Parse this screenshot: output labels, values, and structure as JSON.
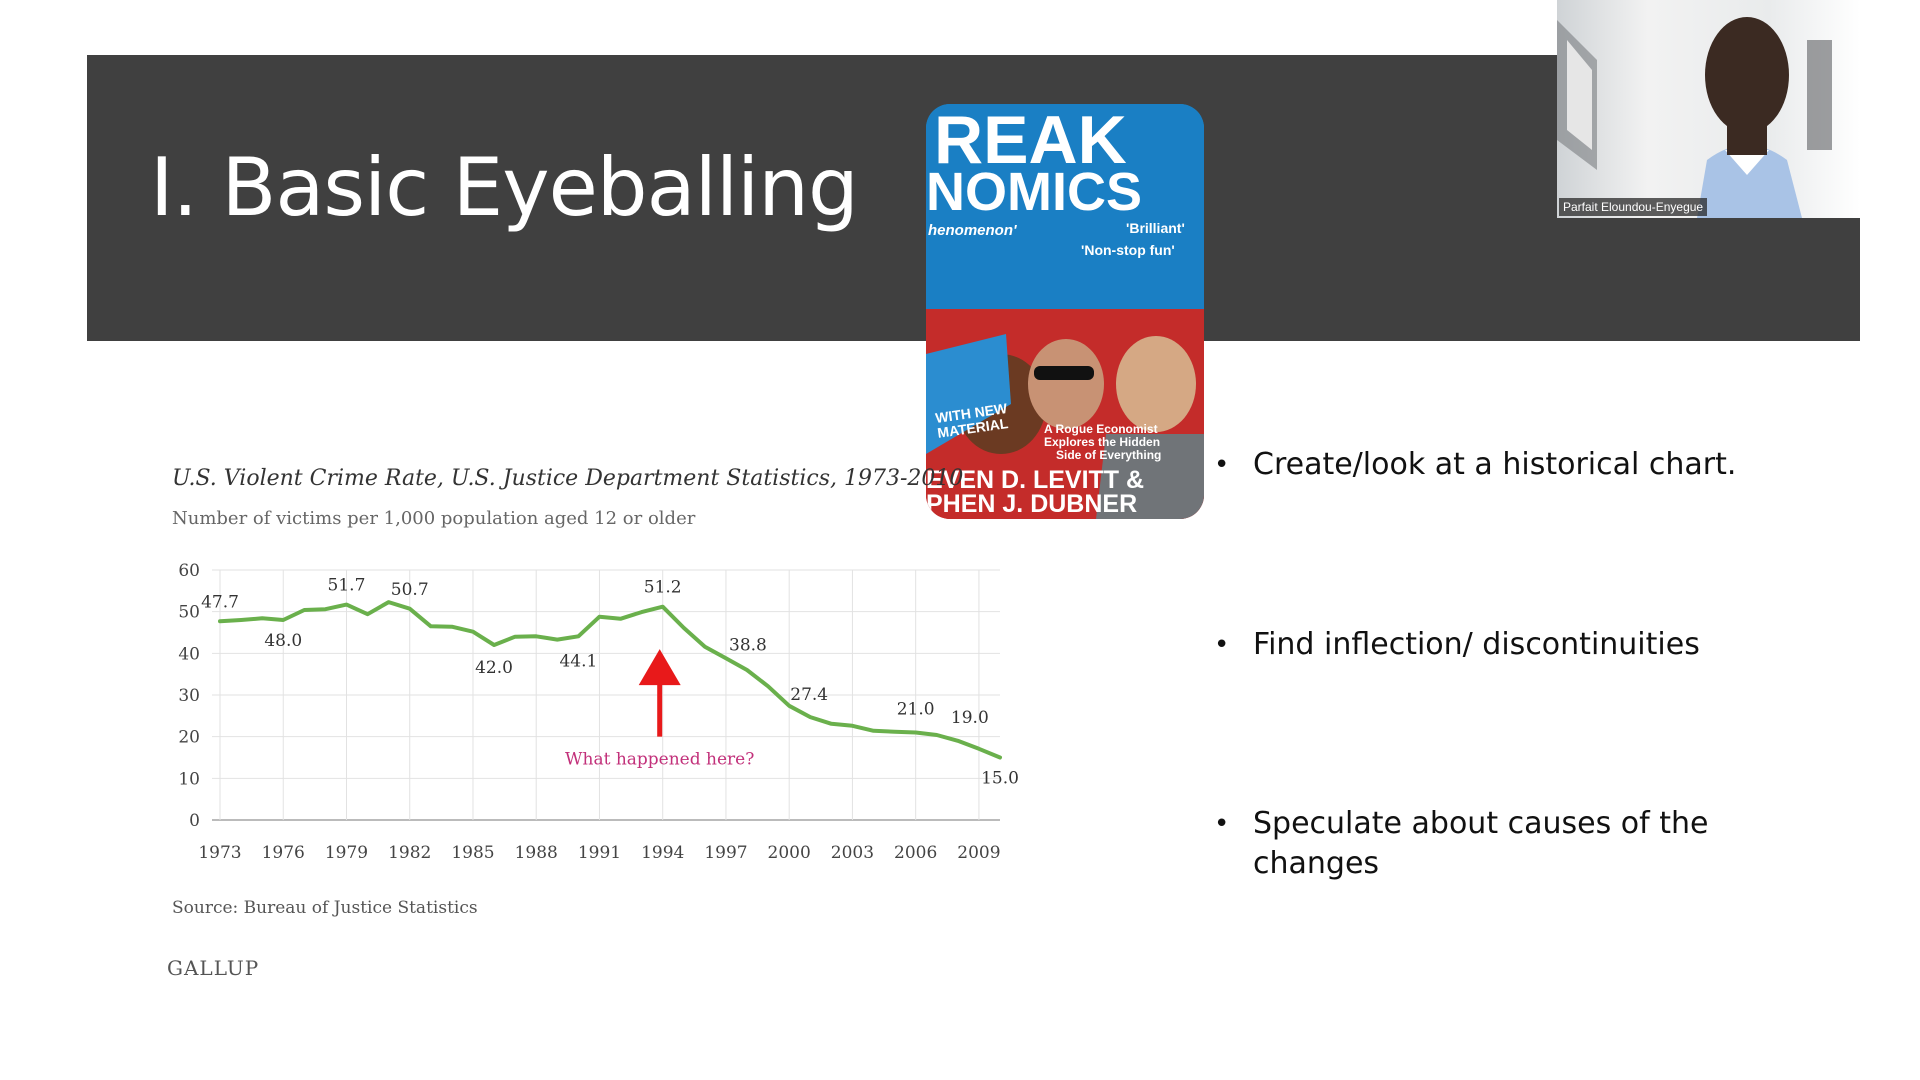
{
  "slide": {
    "title": "I. Basic Eyeballing",
    "bullets": [
      "Create/look at  a historical chart.",
      "Find inflection/ discontinuities",
      "Speculate about causes of the changes"
    ]
  },
  "webcam": {
    "participant_name": "Parfait Eloundou-Enyegue"
  },
  "book_cover": {
    "title_line1": "REAK",
    "title_line2": "NOMICS",
    "tagline_left": "henomenon'",
    "quote1": "'Brilliant'",
    "quote2": "'Non-stop fun'",
    "badge": "WITH NEW MATERIAL",
    "subtitle_line1": "A Rogue Economist",
    "subtitle_line2": "Explores the Hidden",
    "subtitle_line3": "Side of Everything",
    "author_line1": "EVEN D. LEVITT &",
    "author_line2": "PHEN J. DUBNER"
  },
  "chart_data": {
    "type": "line",
    "title": "U.S. Violent Crime Rate, U.S. Justice Department Statistics, 1973-2010",
    "subtitle": "Number of victims per 1,000 population aged 12 or older",
    "source": "Source: Bureau of Justice Statistics",
    "brand": "GALLUP",
    "ylim": [
      0,
      60
    ],
    "y_ticks": [
      0,
      10,
      20,
      30,
      40,
      50,
      60
    ],
    "x_ticks": [
      1973,
      1976,
      1979,
      1982,
      1985,
      1988,
      1991,
      1994,
      1997,
      2000,
      2003,
      2006,
      2009
    ],
    "xlim": [
      1973,
      2010
    ],
    "grid": true,
    "line_color": "#6ab04c",
    "series": [
      {
        "x": [
          1973,
          1974,
          1975,
          1976,
          1977,
          1978,
          1979,
          1980,
          1981,
          1982,
          1983,
          1984,
          1985,
          1986,
          1987,
          1988,
          1989,
          1990,
          1991,
          1992,
          1993,
          1994,
          1995,
          1996,
          1997,
          1998,
          1999,
          2000,
          2001,
          2002,
          2003,
          2004,
          2005,
          2006,
          2007,
          2008,
          2009,
          2010
        ],
        "y": [
          47.7,
          48.0,
          48.4,
          48.0,
          50.4,
          50.6,
          51.7,
          49.4,
          52.3,
          50.7,
          46.5,
          46.4,
          45.2,
          42.0,
          44.0,
          44.1,
          43.3,
          44.1,
          48.8,
          48.3,
          49.9,
          51.2,
          46.1,
          41.6,
          38.8,
          36.0,
          32.1,
          27.4,
          24.7,
          23.1,
          22.6,
          21.4,
          21.2,
          21.0,
          20.4,
          19.0,
          17.1,
          15.0
        ]
      }
    ],
    "data_labels": [
      {
        "x": 1973,
        "y": 47.7,
        "text": "47.7"
      },
      {
        "x": 1976,
        "y": 48.0,
        "text": "48.0"
      },
      {
        "x": 1979,
        "y": 51.7,
        "text": "51.7"
      },
      {
        "x": 1982,
        "y": 50.7,
        "text": "50.7"
      },
      {
        "x": 1986,
        "y": 42.0,
        "text": "42.0"
      },
      {
        "x": 1990,
        "y": 44.1,
        "text": "44.1"
      },
      {
        "x": 1994,
        "y": 51.2,
        "text": "51.2"
      },
      {
        "x": 1997,
        "y": 38.8,
        "text": "38.8"
      },
      {
        "x": 2000,
        "y": 27.4,
        "text": "27.4"
      },
      {
        "x": 2006,
        "y": 21.0,
        "text": "21.0"
      },
      {
        "x": 2008,
        "y": 19.0,
        "text": "19.0"
      },
      {
        "x": 2010,
        "y": 15.0,
        "text": "15.0"
      }
    ],
    "annotation": {
      "text": "What happened here?",
      "color": "#c2307a",
      "arrow_color": "#e8191a",
      "arrow_x": 1994,
      "arrow_y_top": 41,
      "arrow_y_bottom": 20
    }
  }
}
